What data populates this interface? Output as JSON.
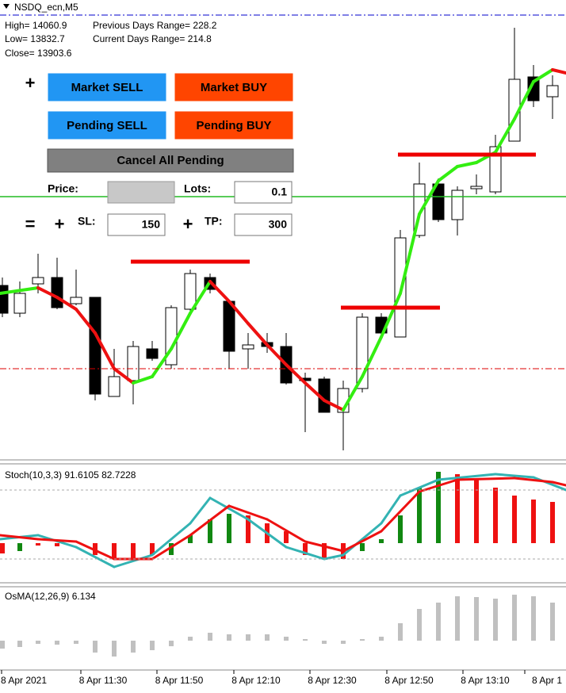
{
  "header": {
    "symbol": "NSDQ_ecn,M5",
    "stats": [
      "High= 14060.9",
      "Previous Days Range= 228.2",
      "Low= 13832.7",
      "Current Days Range= 214.8",
      "Close= 13903.6"
    ]
  },
  "panel": {
    "plus": "+",
    "market_sell": "Market SELL",
    "market_buy": "Market BUY",
    "pending_sell": "Pending SELL",
    "pending_buy": "Pending BUY",
    "cancel": "Cancel All Pending",
    "price_label": "Price:",
    "lots_label": "Lots:",
    "lots": "0.1",
    "equals": "=",
    "sl_plus": "+",
    "sl_label": "SL:",
    "sl": "150",
    "tp_plus": "+",
    "tp_label": "TP:",
    "tp": "300"
  },
  "indicators": {
    "stoch": "Stoch(10,3,3) 91.6105 82.7228",
    "osma": "OsMA(12,26,9) 6.134"
  },
  "time_axis": [
    "8 Apr 2021",
    "8 Apr 11:30",
    "8 Apr 11:50",
    "8 Apr 12:10",
    "8 Apr 12:30",
    "8 Apr 12:50",
    "8 Apr 13:10",
    "8 Apr 1"
  ]
}
